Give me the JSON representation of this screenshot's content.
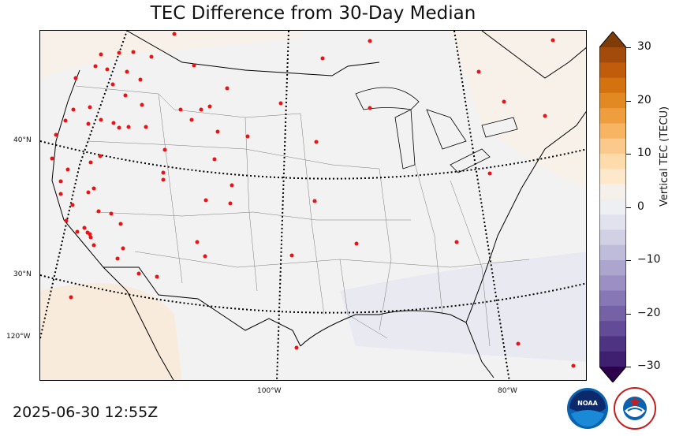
{
  "title": "TEC Difference from 30-Day Median",
  "timestamp": "2025-06-30 12:55Z",
  "lat_labels": [
    "40°N",
    "30°N",
    "120°W"
  ],
  "lon_labels": [
    "100°W",
    "80°W"
  ],
  "colorbar": {
    "label": "Vertical TEC (TECU)",
    "ticks": [
      "30",
      "20",
      "10",
      "0",
      "−10",
      "−20",
      "−30"
    ],
    "range": [
      -30,
      30
    ],
    "colors_top_to_bottom": [
      "#7f3b08",
      "#a34b0a",
      "#c05c0c",
      "#d4720f",
      "#e28921",
      "#ee9e3e",
      "#f7b463",
      "#fbc98b",
      "#fddbab",
      "#fde8cc",
      "#f5f1ea",
      "#eeeff3",
      "#e1e2ee",
      "#d1d0e5",
      "#bfbbda",
      "#aca6cf",
      "#9b8fc4",
      "#8877b5",
      "#7561a6",
      "#634b97",
      "#4e3383",
      "#3e1f70",
      "#2d004b"
    ]
  },
  "logos": {
    "noaa": "NOAA",
    "nws": "NATIONAL WEATHER SERVICE"
  }
}
